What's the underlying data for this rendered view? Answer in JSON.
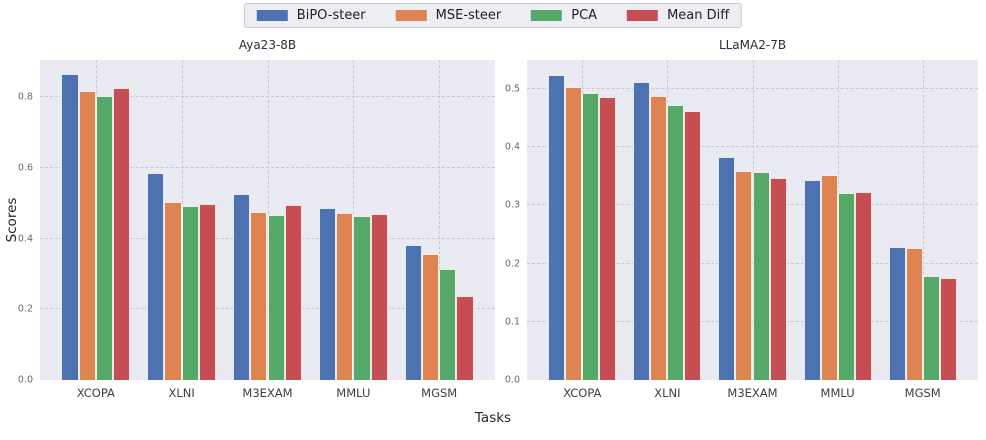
{
  "figure": {
    "background": "#ffffff"
  },
  "legend": {
    "items": [
      {
        "label": "BiPO-steer",
        "color": "#4C72B0"
      },
      {
        "label": "MSE-steer",
        "color": "#DD8452"
      },
      {
        "label": "PCA",
        "color": "#55A868"
      },
      {
        "label": "Mean Diff",
        "color": "#C44E52"
      }
    ]
  },
  "axis": {
    "xlabel": "Tasks",
    "ylabel": "Scores"
  },
  "style": {
    "panel_background": "#eaeaf2",
    "gridline_color": "#c9c9d3",
    "grid": "dashed"
  },
  "chart_data": [
    {
      "type": "bar",
      "title": "Aya23-8B",
      "categories": [
        "XCOPA",
        "XLNI",
        "M3EXAM",
        "MMLU",
        "MGSM"
      ],
      "series": [
        {
          "name": "BiPO-steer",
          "color": "#4C72B0",
          "values": [
            0.865,
            0.586,
            0.527,
            0.487,
            0.382
          ]
        },
        {
          "name": "MSE-steer",
          "color": "#DD8452",
          "values": [
            0.818,
            0.504,
            0.476,
            0.472,
            0.356
          ]
        },
        {
          "name": "PCA",
          "color": "#55A868",
          "values": [
            0.802,
            0.493,
            0.466,
            0.464,
            0.314
          ]
        },
        {
          "name": "Mean Diff",
          "color": "#C44E52",
          "values": [
            0.826,
            0.497,
            0.496,
            0.47,
            0.238
          ]
        }
      ],
      "xlabel": "Tasks",
      "ylabel": "Scores",
      "ylim": [
        0,
        0.905
      ],
      "yticks": [
        0.0,
        0.2,
        0.4,
        0.6,
        0.8
      ],
      "grid": true,
      "legend_position": "top-center-shared"
    },
    {
      "type": "bar",
      "title": "LLaMA2-7B",
      "categories": [
        "XCOPA",
        "XLNI",
        "M3EXAM",
        "MMLU",
        "MGSM"
      ],
      "series": [
        {
          "name": "BiPO-steer",
          "color": "#4C72B0",
          "values": [
            0.525,
            0.512,
            0.384,
            0.343,
            0.228
          ]
        },
        {
          "name": "MSE-steer",
          "color": "#DD8452",
          "values": [
            0.503,
            0.488,
            0.36,
            0.352,
            0.227
          ]
        },
        {
          "name": "PCA",
          "color": "#55A868",
          "values": [
            0.493,
            0.472,
            0.357,
            0.322,
            0.179
          ]
        },
        {
          "name": "Mean Diff",
          "color": "#C44E52",
          "values": [
            0.486,
            0.463,
            0.348,
            0.324,
            0.176
          ]
        }
      ],
      "xlabel": "Tasks",
      "ylabel": "",
      "ylim": [
        0,
        0.55
      ],
      "yticks": [
        0.0,
        0.1,
        0.2,
        0.3,
        0.4,
        0.5
      ],
      "grid": true,
      "legend_position": "top-center-shared"
    }
  ]
}
